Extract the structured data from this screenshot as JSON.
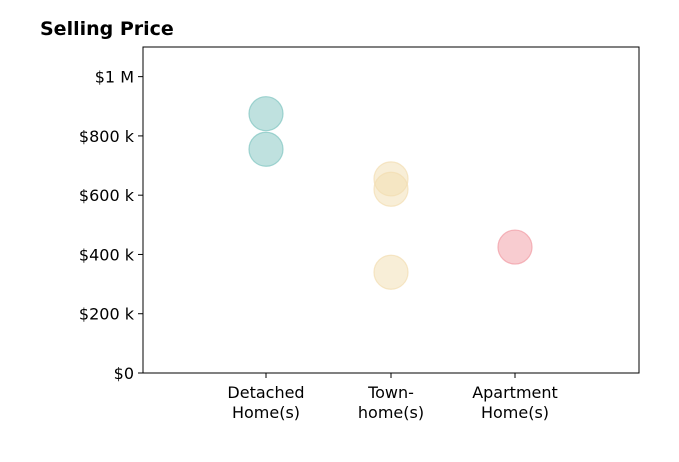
{
  "chart_data": {
    "type": "scatter",
    "title": "Selling Price",
    "xlabel": "",
    "ylabel": "",
    "categories": [
      [
        "Detached",
        "Home(s)"
      ],
      [
        "Town-",
        "home(s)"
      ],
      [
        "Apartment",
        "Home(s)"
      ]
    ],
    "ylim": [
      0,
      1100000
    ],
    "yticks": [
      {
        "value": 0,
        "label": "$0"
      },
      {
        "value": 200000,
        "label": "$200 k"
      },
      {
        "value": 400000,
        "label": "$400 k"
      },
      {
        "value": 600000,
        "label": "$600 k"
      },
      {
        "value": 800000,
        "label": "$800 k"
      },
      {
        "value": 1000000,
        "label": "$1 M"
      }
    ],
    "series": [
      {
        "category_index": 0,
        "color": "#7fc4c0",
        "values": [
          875000,
          755000
        ]
      },
      {
        "category_index": 1,
        "color": "#f2ddb0",
        "values": [
          655000,
          620000,
          340000
        ]
      },
      {
        "category_index": 2,
        "color": "#f19aa2",
        "values": [
          425000
        ]
      }
    ],
    "grid": false,
    "legend": "none"
  }
}
